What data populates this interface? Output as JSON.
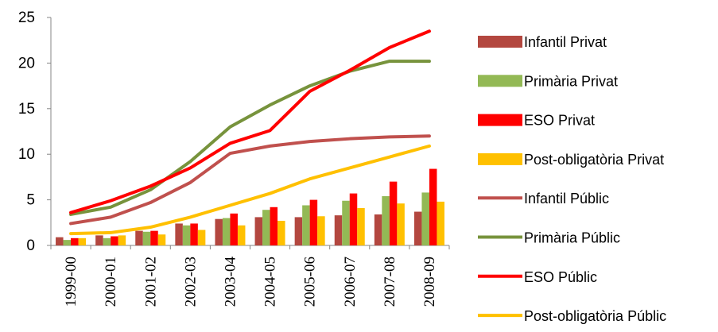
{
  "chart_data": {
    "type": "bar",
    "categories": [
      "1999-00",
      "2000-01",
      "2001-02",
      "2002-03",
      "2003-04",
      "2004-05",
      "2005-06",
      "2006-07",
      "2007-08",
      "2008-09"
    ],
    "ylim": [
      0,
      25
    ],
    "yticks": [
      0,
      5,
      10,
      15,
      20,
      25
    ],
    "grid": false,
    "legend_position": "right",
    "bar_series": [
      {
        "name": "Infantil Privat",
        "color": "#b3473f",
        "values": [
          0.9,
          1.1,
          1.6,
          2.4,
          2.9,
          3.1,
          3.1,
          3.3,
          3.4,
          3.7
        ]
      },
      {
        "name": "Primària Privat",
        "color": "#93b955",
        "values": [
          0.6,
          0.8,
          1.5,
          2.2,
          3.0,
          3.9,
          4.4,
          4.9,
          5.4,
          5.8
        ]
      },
      {
        "name": "ESO Privat",
        "color": "#ff0000",
        "values": [
          0.8,
          1.0,
          1.6,
          2.4,
          3.5,
          4.2,
          5.0,
          5.7,
          7.0,
          8.4
        ]
      },
      {
        "name": "Post-obligatòria Privat",
        "color": "#ffc000",
        "values": [
          0.8,
          1.1,
          1.2,
          1.7,
          2.2,
          2.7,
          3.2,
          4.1,
          4.6,
          4.8
        ]
      }
    ],
    "line_series": [
      {
        "name": "Infantil Públic",
        "color": "#c0504d",
        "values": [
          2.4,
          3.1,
          4.7,
          6.9,
          10.1,
          10.9,
          11.4,
          11.7,
          11.9,
          12.0
        ]
      },
      {
        "name": "Primària Públic",
        "color": "#77933c",
        "values": [
          3.4,
          4.2,
          6.1,
          9.2,
          13.0,
          15.4,
          17.5,
          19.1,
          20.2,
          20.2
        ]
      },
      {
        "name": "ESO Públic",
        "color": "#ff0000",
        "values": [
          3.6,
          4.9,
          6.5,
          8.5,
          11.2,
          12.6,
          16.9,
          19.2,
          21.7,
          23.5
        ]
      },
      {
        "name": "Post-obligatòria Públic",
        "color": "#ffc000",
        "values": [
          1.3,
          1.4,
          2.0,
          3.1,
          4.4,
          5.7,
          7.3,
          8.5,
          9.7,
          10.9
        ]
      }
    ]
  }
}
